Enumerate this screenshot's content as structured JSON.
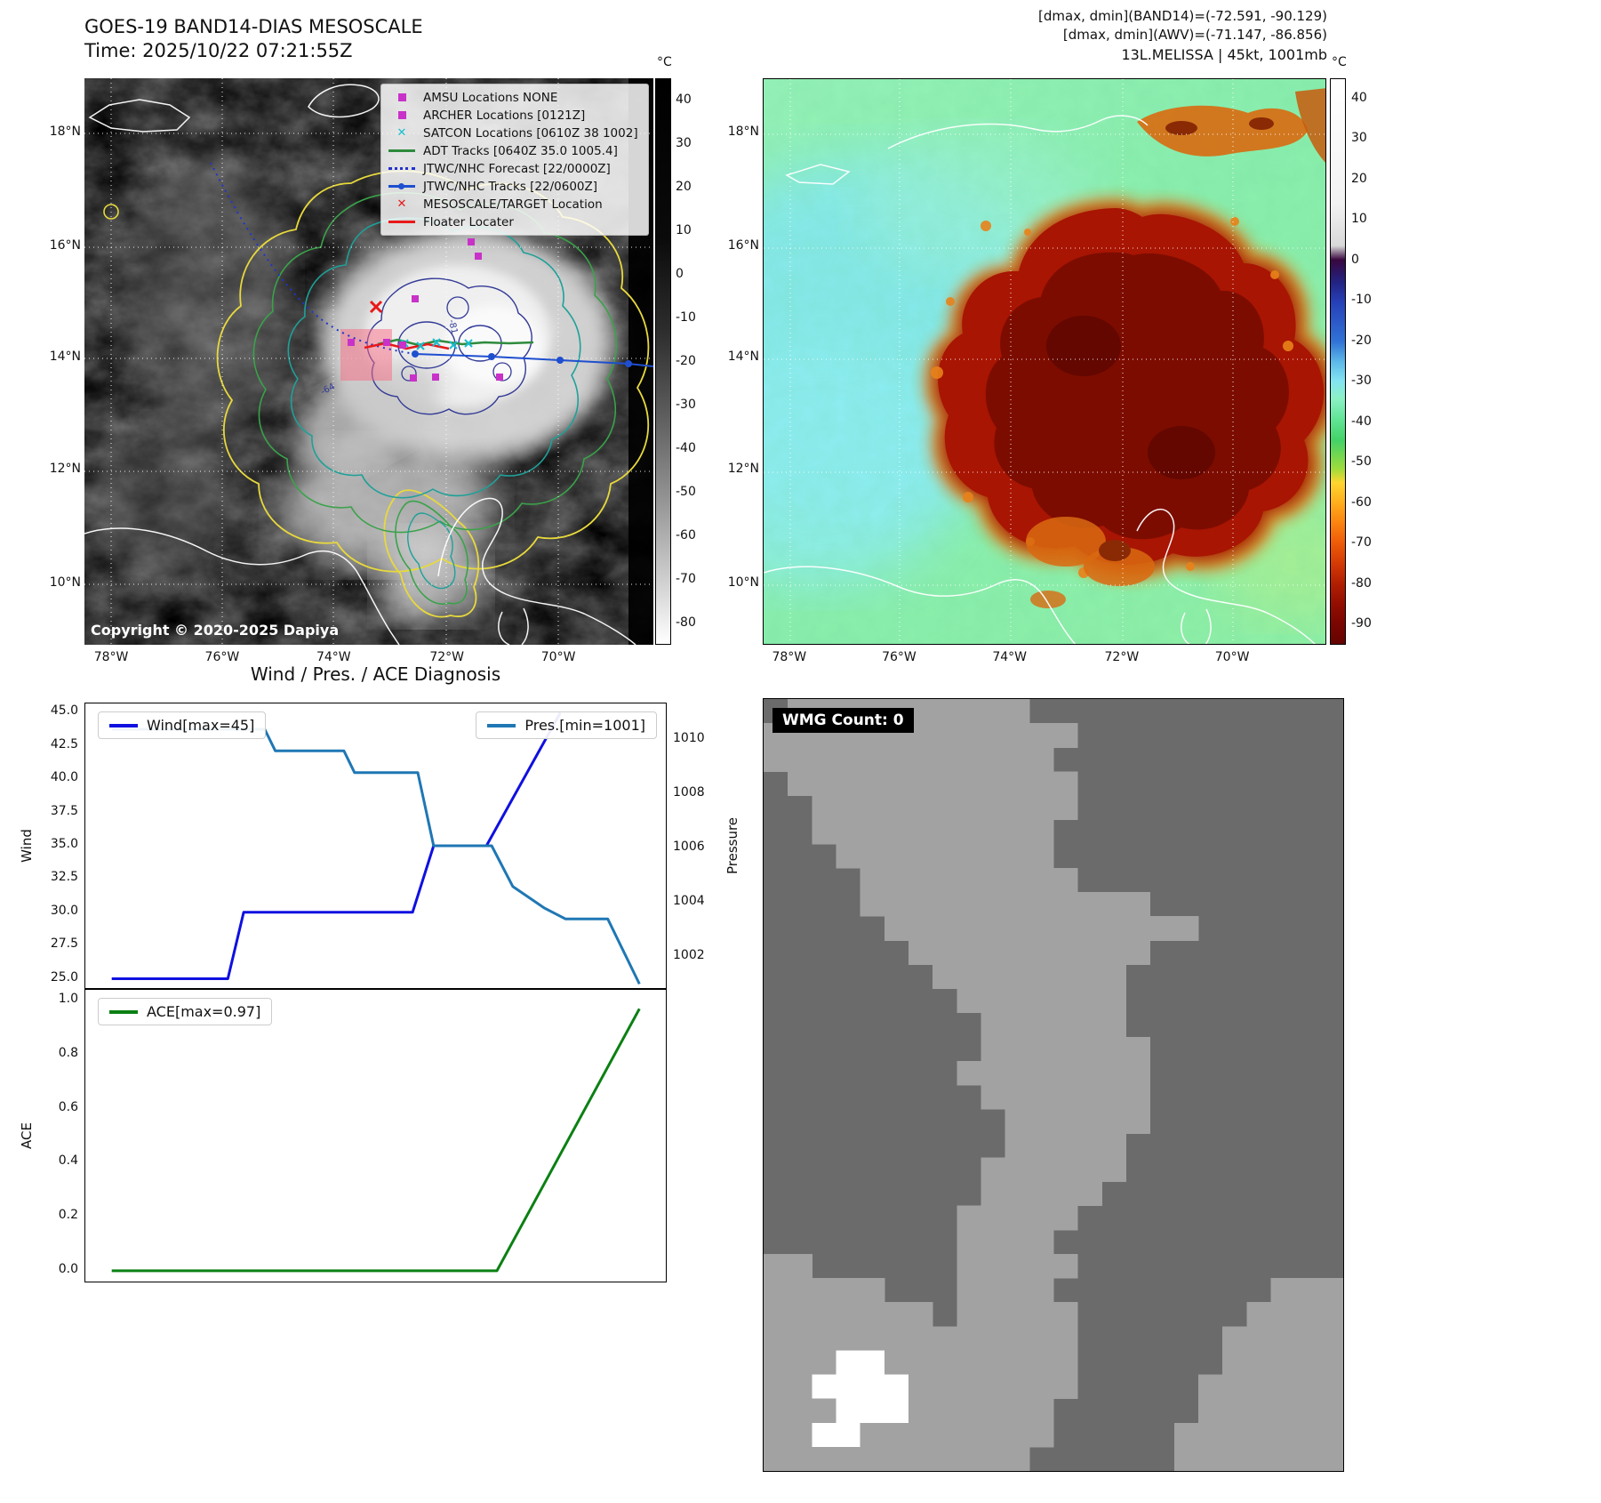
{
  "panel1": {
    "title": "GOES-19 BAND14-DIAS MESOSCALE",
    "time_line": "Time: 2025/10/22 07:21:55Z",
    "copyright": "Copyright © 2020-2025 Dapiya",
    "colorbar": {
      "unit": "°C",
      "vmax": 45,
      "vmin": -85,
      "ticks": [
        40,
        30,
        20,
        10,
        0,
        -10,
        -20,
        -30,
        -40,
        -50,
        -60,
        -70,
        -80
      ]
    },
    "lat_ticks": [
      "18°N",
      "16°N",
      "14°N",
      "12°N",
      "10°N"
    ],
    "lon_ticks": [
      "78°W",
      "76°W",
      "74°W",
      "72°W",
      "70°W"
    ],
    "contour_labels": [
      "-64",
      "-81"
    ],
    "legend": [
      {
        "label": "AMSU Locations NONE",
        "marker": "square",
        "color": "#c832c8"
      },
      {
        "label": "ARCHER Locations [0121Z]",
        "marker": "square",
        "color": "#c832c8"
      },
      {
        "label": "SATCON Locations [0610Z 38 1002]",
        "marker": "x",
        "color": "#17becf"
      },
      {
        "label": "ADT Tracks [0640Z 35.0 1005.4]",
        "marker": "line",
        "color": "#2e8b3d"
      },
      {
        "label": "JTWC/NHC Forecast [22/0000Z]",
        "marker": "dotted",
        "color": "#2233cc"
      },
      {
        "label": "JTWC/NHC Tracks [22/0600Z]",
        "marker": "line-dot",
        "color": "#1f4fd0"
      },
      {
        "label": "MESOSCALE/TARGET Location",
        "marker": "x",
        "color": "#e81919"
      },
      {
        "label": "Floater Locater",
        "marker": "line",
        "color": "#e81919"
      }
    ]
  },
  "panel2": {
    "header_lines": [
      "[dmax, dmin](BAND14)=(-72.591, -90.129)",
      "[dmax, dmin](AWV)=(-71.147, -86.856)",
      "13L.MELISSA | 45kt, 1001mb"
    ],
    "colorbar": {
      "unit": "°C",
      "vmax": 45,
      "vmin": -95,
      "ticks": [
        40,
        30,
        20,
        10,
        0,
        -10,
        -20,
        -30,
        -40,
        -50,
        -60,
        -70,
        -80,
        -90
      ]
    },
    "lat_ticks": [
      "18°N",
      "16°N",
      "14°N",
      "12°N",
      "10°N"
    ],
    "lon_ticks": [
      "78°W",
      "76°W",
      "74°W",
      "72°W",
      "70°W"
    ]
  },
  "diagnosis": {
    "title": "Wind / Pres. / ACE Diagnosis"
  },
  "chart_data": [
    {
      "type": "line",
      "title": "Wind / Pres. / ACE Diagnosis",
      "ylabel": "Wind",
      "y2label": "Pressure",
      "xlim": [
        -1,
        21
      ],
      "ylim": [
        24.3,
        45.7
      ],
      "y2lim": [
        1000.85,
        1011.35
      ],
      "yticks": [
        "25.0",
        "27.5",
        "30.0",
        "32.5",
        "35.0",
        "37.5",
        "40.0",
        "42.5",
        "45.0"
      ],
      "y2ticks": [
        "1002",
        "1004",
        "1006",
        "1008",
        "1010"
      ],
      "grid": false,
      "series": [
        {
          "name": "Wind[max=45]",
          "color": "#0f10e0",
          "axis": "left",
          "points": [
            [
              0,
              25
            ],
            [
              4.4,
              25
            ],
            [
              5,
              30
            ],
            [
              11.4,
              30
            ],
            [
              12.2,
              35
            ],
            [
              14.2,
              35
            ],
            [
              17,
              45
            ]
          ]
        },
        {
          "name": "Pres.[min=1001]",
          "color": "#1f77b4",
          "axis": "right",
          "points": [
            [
              0,
              1010.4
            ],
            [
              5.8,
              1010.4
            ],
            [
              6.2,
              1009.6
            ],
            [
              8.8,
              1009.6
            ],
            [
              9.2,
              1008.8
            ],
            [
              11.6,
              1008.8
            ],
            [
              12.2,
              1006.1
            ],
            [
              14.4,
              1006.1
            ],
            [
              15.2,
              1004.6
            ],
            [
              16.4,
              1003.8
            ],
            [
              17.2,
              1003.4
            ],
            [
              18.8,
              1003.4
            ],
            [
              20,
              1001
            ]
          ]
        }
      ]
    },
    {
      "type": "line",
      "ylabel": "ACE",
      "xlim": [
        -1,
        21
      ],
      "ylim": [
        -0.04,
        1.04
      ],
      "yticks": [
        "0.0",
        "0.2",
        "0.4",
        "0.6",
        "0.8",
        "1.0"
      ],
      "grid": false,
      "series": [
        {
          "name": "ACE[max=0.97]",
          "color": "#0b8014",
          "axis": "left",
          "points": [
            [
              0,
              0
            ],
            [
              14.6,
              0
            ],
            [
              20,
              0.97
            ]
          ]
        }
      ]
    }
  ],
  "panel4": {
    "label": "WMG Count: 0",
    "colors": {
      "dark": "#6b6b6b",
      "light": "#a2a2a2",
      "white": "#ffffff"
    },
    "pattern": [
      ".oooooooooo.............",
      "ooooooooooooo...........",
      "oooooooooooo............",
      ".oooooooooooo...........",
      "..ooooooooooo...........",
      "..oooooooooo............",
      "...ooooooooo............",
      "....ooooooooo...........",
      "....oooooooooooo........",
      ".....ooooooooooooo......",
      "......oooooooooo........",
      ".......oooooooo.........",
      "........ooooooo.........",
      ".........oooooo.........",
      ".........ooooooo........",
      "........oooooooo........",
      ".........ooooooo........",
      "..........oooooo........",
      "..........ooooo.........",
      ".........oooooo.........",
      ".........ooooo..........",
      "........ooooo...........",
      "........oooo............",
      "oo......ooooo...........",
      "ooooo...oooo.........ooo",
      "ooooooo.ooooo.......oooo",
      "ooooooooooooo......ooooo",
      "oooWWoooooooo......ooooo",
      "ooWWWWooooooo.....oooooo",
      "oooWWWoooooo......oooooo",
      "ooWWoooooooo.....ooooooo",
      "ooooooooooo......ooooooo"
    ]
  }
}
